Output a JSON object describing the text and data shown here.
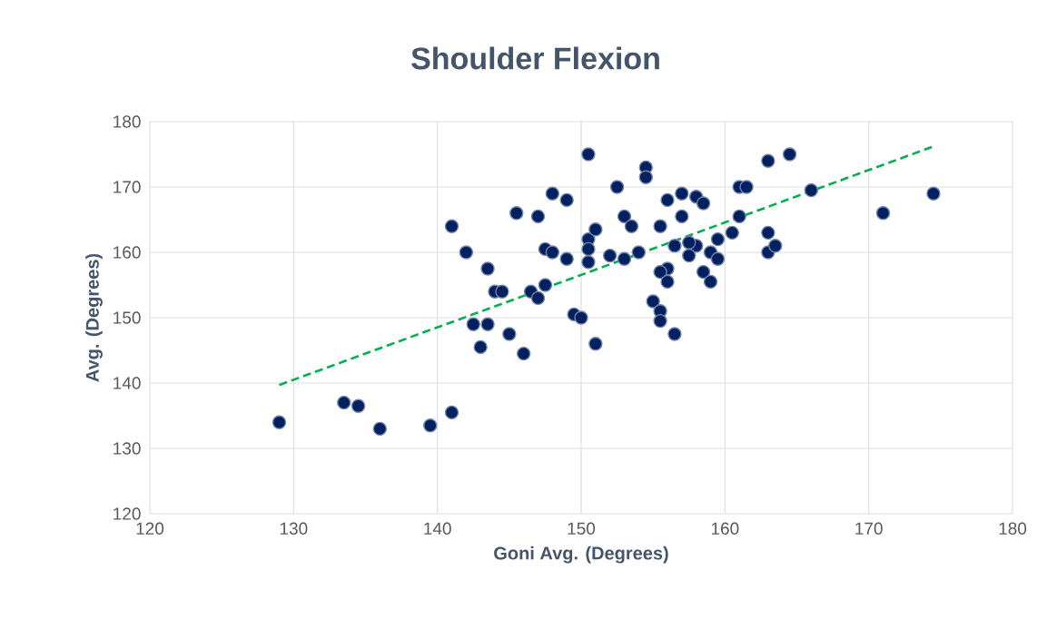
{
  "chart_data": {
    "type": "scatter",
    "title": "Shoulder Flexion",
    "xlabel": "Goni Avg. (Degrees)",
    "ylabel": "Avg. (Degrees)",
    "xlim": [
      120,
      180
    ],
    "xticks": [
      120,
      130,
      140,
      150,
      160,
      170,
      180
    ],
    "ylim": [
      120,
      180
    ],
    "yticks": [
      120,
      130,
      140,
      150,
      160,
      170,
      180
    ],
    "grid": true,
    "marker": "circle",
    "series": [
      {
        "color": "#002060",
        "x": [
          129,
          133.5,
          134.5,
          136,
          139.5,
          141,
          141,
          142,
          143.5,
          144,
          144.5,
          142.5,
          143.5,
          143,
          145,
          146,
          145.5,
          147,
          146.5,
          147,
          147.5,
          147.5,
          148,
          148,
          149,
          149,
          149.5,
          150,
          150.5,
          150.5,
          150.5,
          150.5,
          151,
          151,
          152,
          152.5,
          153,
          153,
          153.5,
          154,
          154.5,
          154.5,
          155,
          155.5,
          155.5,
          156.5,
          156,
          157,
          158,
          158.5,
          155.5,
          157,
          161,
          161.5,
          163,
          164.5,
          166,
          171,
          174.5,
          161,
          160.5,
          159.5,
          163,
          163,
          163.5,
          158,
          157.5,
          156.5,
          157.5,
          159,
          159.5,
          156,
          155.5,
          156,
          158.5,
          159
        ],
        "values": [
          134,
          137,
          136.5,
          133,
          133.5,
          135.5,
          164,
          160,
          157.5,
          154,
          154,
          149,
          149,
          145.5,
          147.5,
          144.5,
          166,
          165.5,
          154,
          153,
          155,
          160.5,
          160,
          169,
          168,
          159,
          150.5,
          150,
          175,
          162,
          160.5,
          158.5,
          163.5,
          146,
          159.5,
          170,
          165.5,
          159,
          164,
          160,
          173,
          171.5,
          152.5,
          151,
          149.5,
          147.5,
          168,
          169,
          168.5,
          167.5,
          164,
          165.5,
          170,
          170,
          174,
          175,
          169.5,
          166,
          169,
          165.5,
          163,
          162,
          163,
          160,
          161,
          161,
          161.5,
          161,
          159.5,
          160,
          159,
          157.5,
          157,
          155.5,
          157,
          155.5
        ]
      },
      {
        "type": "line",
        "color": "#00b050",
        "line_style": "dashed",
        "marker": "none",
        "x": [
          129,
          174.5
        ],
        "values": [
          139.7,
          176.2
        ]
      }
    ]
  }
}
